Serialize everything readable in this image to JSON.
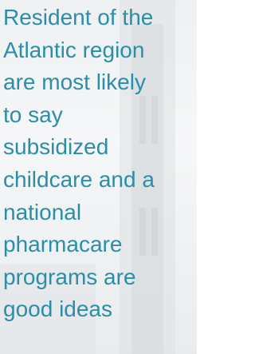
{
  "text": {
    "lines": [
      "Resident of the",
      "Atlantic region",
      "are most likely",
      "to say",
      "subsidized",
      "childcare and a",
      "national",
      "pharmacare",
      "programs are",
      "good ideas"
    ]
  }
}
